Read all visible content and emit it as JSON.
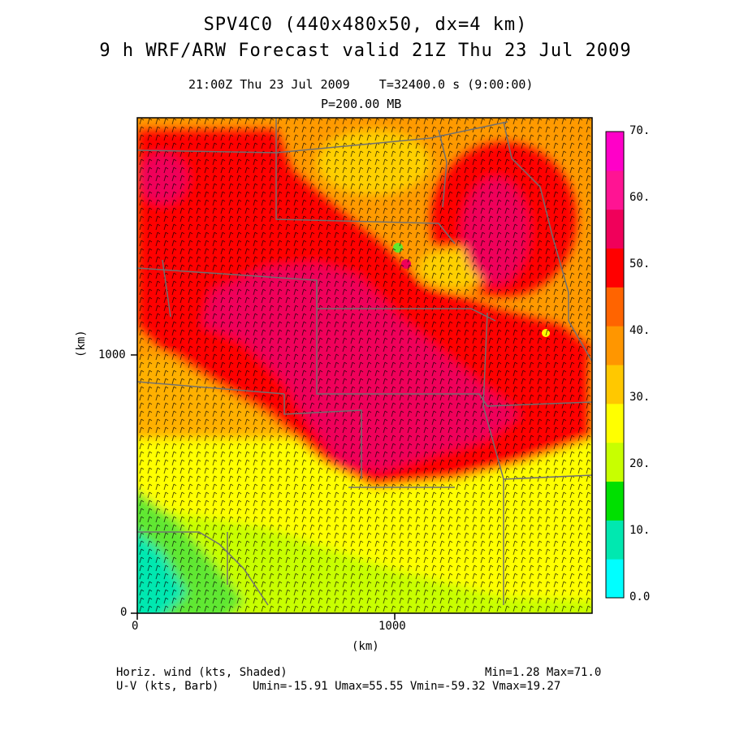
{
  "header": {
    "title_line1": "SPV4C0 (440x480x50, dx=4 km)",
    "title_line2": "9 h WRF/ARW Forecast valid 21Z Thu 23 Jul 2009",
    "time_line": "21:00Z Thu 23 Jul 2009    T=32400.0 s (9:00:00)",
    "level_line": "P=200.00 MB"
  },
  "axes": {
    "x_ticks": [
      "0",
      "1000"
    ],
    "y_ticks": [
      "0",
      "1000"
    ],
    "x_unit": "(km)",
    "y_unit": "(km)"
  },
  "colorbar": {
    "labels": [
      "0.0",
      "10.",
      "20.",
      "30.",
      "40.",
      "50.",
      "60.",
      "70."
    ],
    "colors": [
      "#00ffff",
      "#00e8b0",
      "#00e000",
      "#c8ff00",
      "#ffff00",
      "#ffc800",
      "#ff9600",
      "#ff6400",
      "#ff0000",
      "#f0005a",
      "#ff1493",
      "#ff00c8"
    ]
  },
  "footer": {
    "field1_label": "Horiz. wind (kts, Shaded)",
    "field1_stats": "Min=1.28 Max=71.0",
    "field2_label": "U-V (kts, Barb)",
    "field2_stats": "Umin=-15.91 Umax=55.55 Vmin=-59.32 Vmax=19.27"
  },
  "chart_data": {
    "type": "heatmap",
    "variable": "Horiz. wind (kts, Shaded)",
    "overlay": "U-V (kts, Barb)",
    "pressure_level": "P=200.00 MB",
    "domain_km": [
      0,
      1760,
      0,
      1920
    ],
    "colorbar_range": [
      0,
      70
    ],
    "colorbar_step": 5,
    "min": 1.28,
    "max": 71.0,
    "umin": -15.91,
    "umax": 55.55,
    "vmin": -59.32,
    "vmax": 19.27
  }
}
